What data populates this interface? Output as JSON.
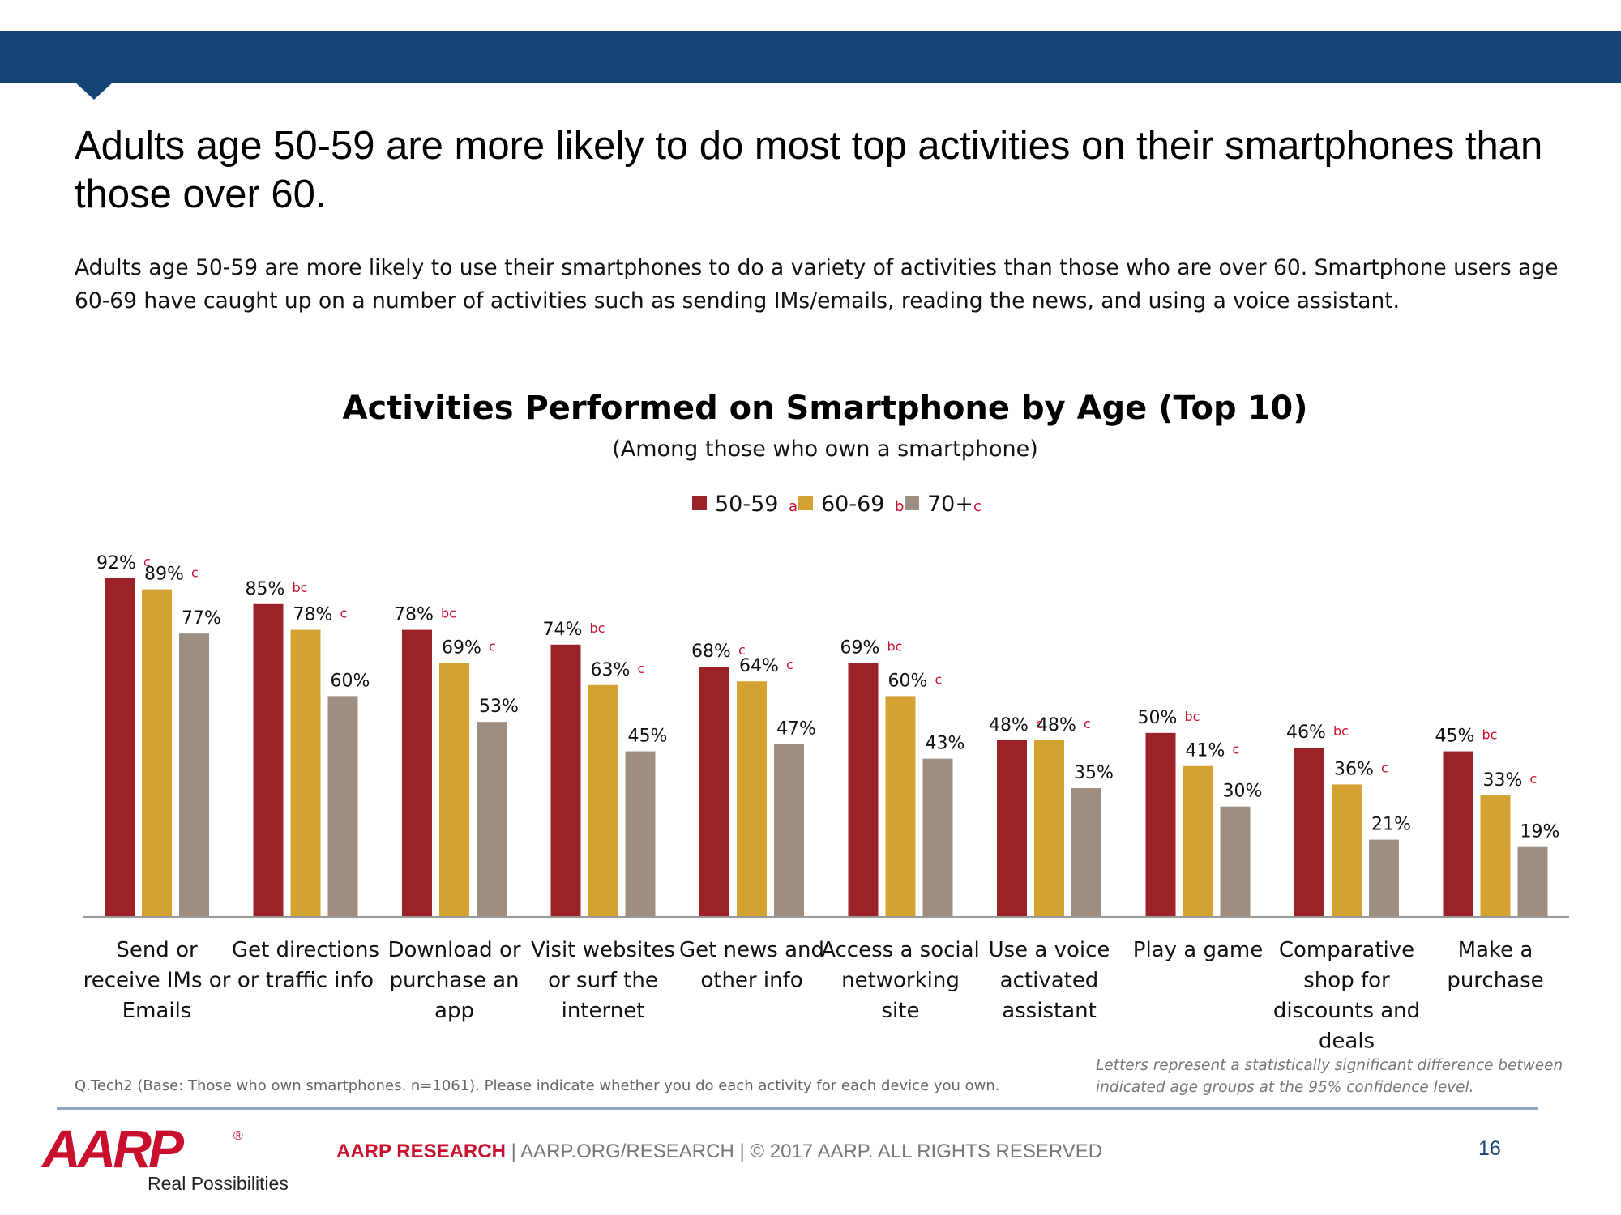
{
  "slide": {
    "headline": "Adults age 50-59 are more likely to do most top activities on their smartphones than those over 60.",
    "subtext": "Adults age 50-59 are more likely to use their smartphones to do a variety of activities than those who are over 60. Smartphone users age 60-69 have caught up on a number of activities such as sending IMs/emails, reading the news, and using a voice assistant.",
    "footnote": "Q.Tech2 (Base: Those who own smartphones. n=1061). Please indicate whether you do each activity for each device you own.",
    "significance_note": "Letters represent a statistically significant difference between indicated age groups at the 95% confidence level.",
    "footer": {
      "brand": "AARP RESEARCH",
      "rest": " | AARP.ORG/RESEARCH | © 2017 AARP. ALL RIGHTS RESERVED"
    },
    "page_number": "16",
    "logo": {
      "wordmark": "AARP",
      "registered": "®",
      "tagline": "Real Possibilities"
    },
    "colors": {
      "header_bar": "#144574",
      "significance_letters": "#c8102e"
    }
  },
  "chart_data": {
    "type": "bar",
    "title": "Activities Performed on Smartphone by Age (Top 10)",
    "subtitle": "(Among those who own a smartphone)",
    "legend_position": "top-center",
    "ylim": [
      0,
      100
    ],
    "grid": false,
    "categories": [
      "Send or receive IMs or Emails",
      "Get directions or traffic info",
      "Download or purchase an app",
      "Visit websites or surf the internet",
      "Get news and other info",
      "Access a social networking site",
      "Use a voice activated assistant",
      "Play a game",
      "Comparative shop for discounts and deals",
      "Make a purchase"
    ],
    "category_lines": [
      [
        "Send or",
        "receive IMs or",
        "Emails"
      ],
      [
        "Get directions",
        "or traffic info"
      ],
      [
        "Download or",
        "purchase an",
        "app"
      ],
      [
        "Visit websites",
        "or surf the",
        "internet"
      ],
      [
        "Get news and",
        "other info"
      ],
      [
        "Access a social",
        "networking",
        "site"
      ],
      [
        "Use a voice",
        "activated",
        "assistant"
      ],
      [
        "Play a game"
      ],
      [
        "Comparative",
        "shop for",
        "discounts and",
        "deals"
      ],
      [
        "Make a",
        "purchase"
      ]
    ],
    "series": [
      {
        "name": "50-59",
        "letter": "a",
        "color": "#9b2226",
        "values": [
          92,
          85,
          78,
          74,
          68,
          69,
          48,
          50,
          46,
          45
        ],
        "labels": [
          "92%",
          "85%",
          "78%",
          "74%",
          "68%",
          "69%",
          "48%",
          "50%",
          "46%",
          "45%"
        ],
        "significance": [
          "c",
          "bc",
          "bc",
          "bc",
          "c",
          "bc",
          "c",
          "bc",
          "bc",
          "bc"
        ]
      },
      {
        "name": "60-69",
        "letter": "b",
        "color": "#d4a231",
        "values": [
          89,
          78,
          69,
          63,
          64,
          60,
          48,
          41,
          36,
          33
        ],
        "labels": [
          "89%",
          "78%",
          "69%",
          "63%",
          "64%",
          "60%",
          "48%",
          "41%",
          "36%",
          "33%"
        ],
        "significance": [
          "c",
          "c",
          "c",
          "c",
          "c",
          "c",
          "c",
          "c",
          "c",
          "c"
        ]
      },
      {
        "name": "70+",
        "letter": "c",
        "color": "#9d8e81",
        "values": [
          77,
          60,
          53,
          45,
          47,
          43,
          35,
          30,
          21,
          19
        ],
        "labels": [
          "77%",
          "60%",
          "53%",
          "45%",
          "47%",
          "43%",
          "35%",
          "30%",
          "21%",
          "19%"
        ],
        "significance": [
          "",
          "",
          "",
          "",
          "",
          "",
          "",
          "",
          "",
          ""
        ]
      }
    ]
  }
}
